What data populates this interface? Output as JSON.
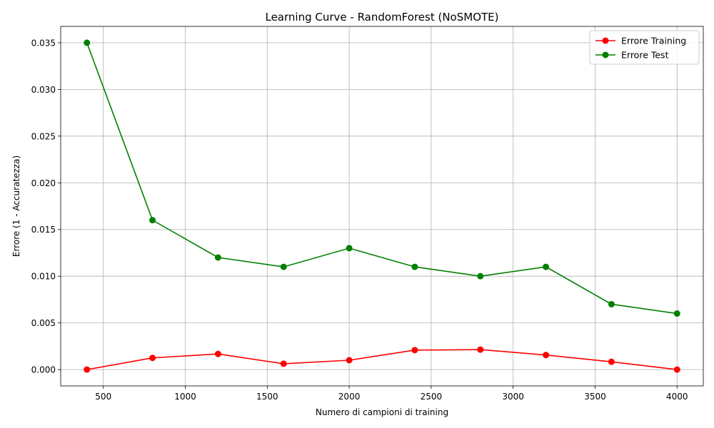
{
  "chart_data": {
    "type": "line",
    "title": "Learning Curve - RandomForest (NoSMOTE)",
    "xlabel": "Numero di campioni di training",
    "ylabel": "Errore (1 - Accuratezza)",
    "x": [
      400,
      800,
      1200,
      1600,
      2000,
      2400,
      2800,
      3200,
      3600,
      4000
    ],
    "xlim": [
      240,
      4160
    ],
    "ylim": [
      -0.00175,
      0.03675
    ],
    "xticks": [
      500,
      1000,
      1500,
      2000,
      2500,
      3000,
      3500,
      4000
    ],
    "yticks": [
      0.0,
      0.005,
      0.01,
      0.015,
      0.02,
      0.025,
      0.03,
      0.035
    ],
    "ytick_labels": [
      "0.000",
      "0.005",
      "0.010",
      "0.015",
      "0.020",
      "0.025",
      "0.030",
      "0.035"
    ],
    "grid": true,
    "legend_position": "top-right",
    "series": [
      {
        "name": "Errore Training",
        "color": "#ff0000",
        "values": [
          0.0,
          0.00125,
          0.00167,
          0.000625,
          0.001,
          0.00208,
          0.00214,
          0.00156,
          0.000833,
          0.0
        ]
      },
      {
        "name": "Errore Test",
        "color": "#008000",
        "values": [
          0.035,
          0.016,
          0.012,
          0.011,
          0.013,
          0.011,
          0.01,
          0.011,
          0.007,
          0.006
        ]
      }
    ]
  }
}
